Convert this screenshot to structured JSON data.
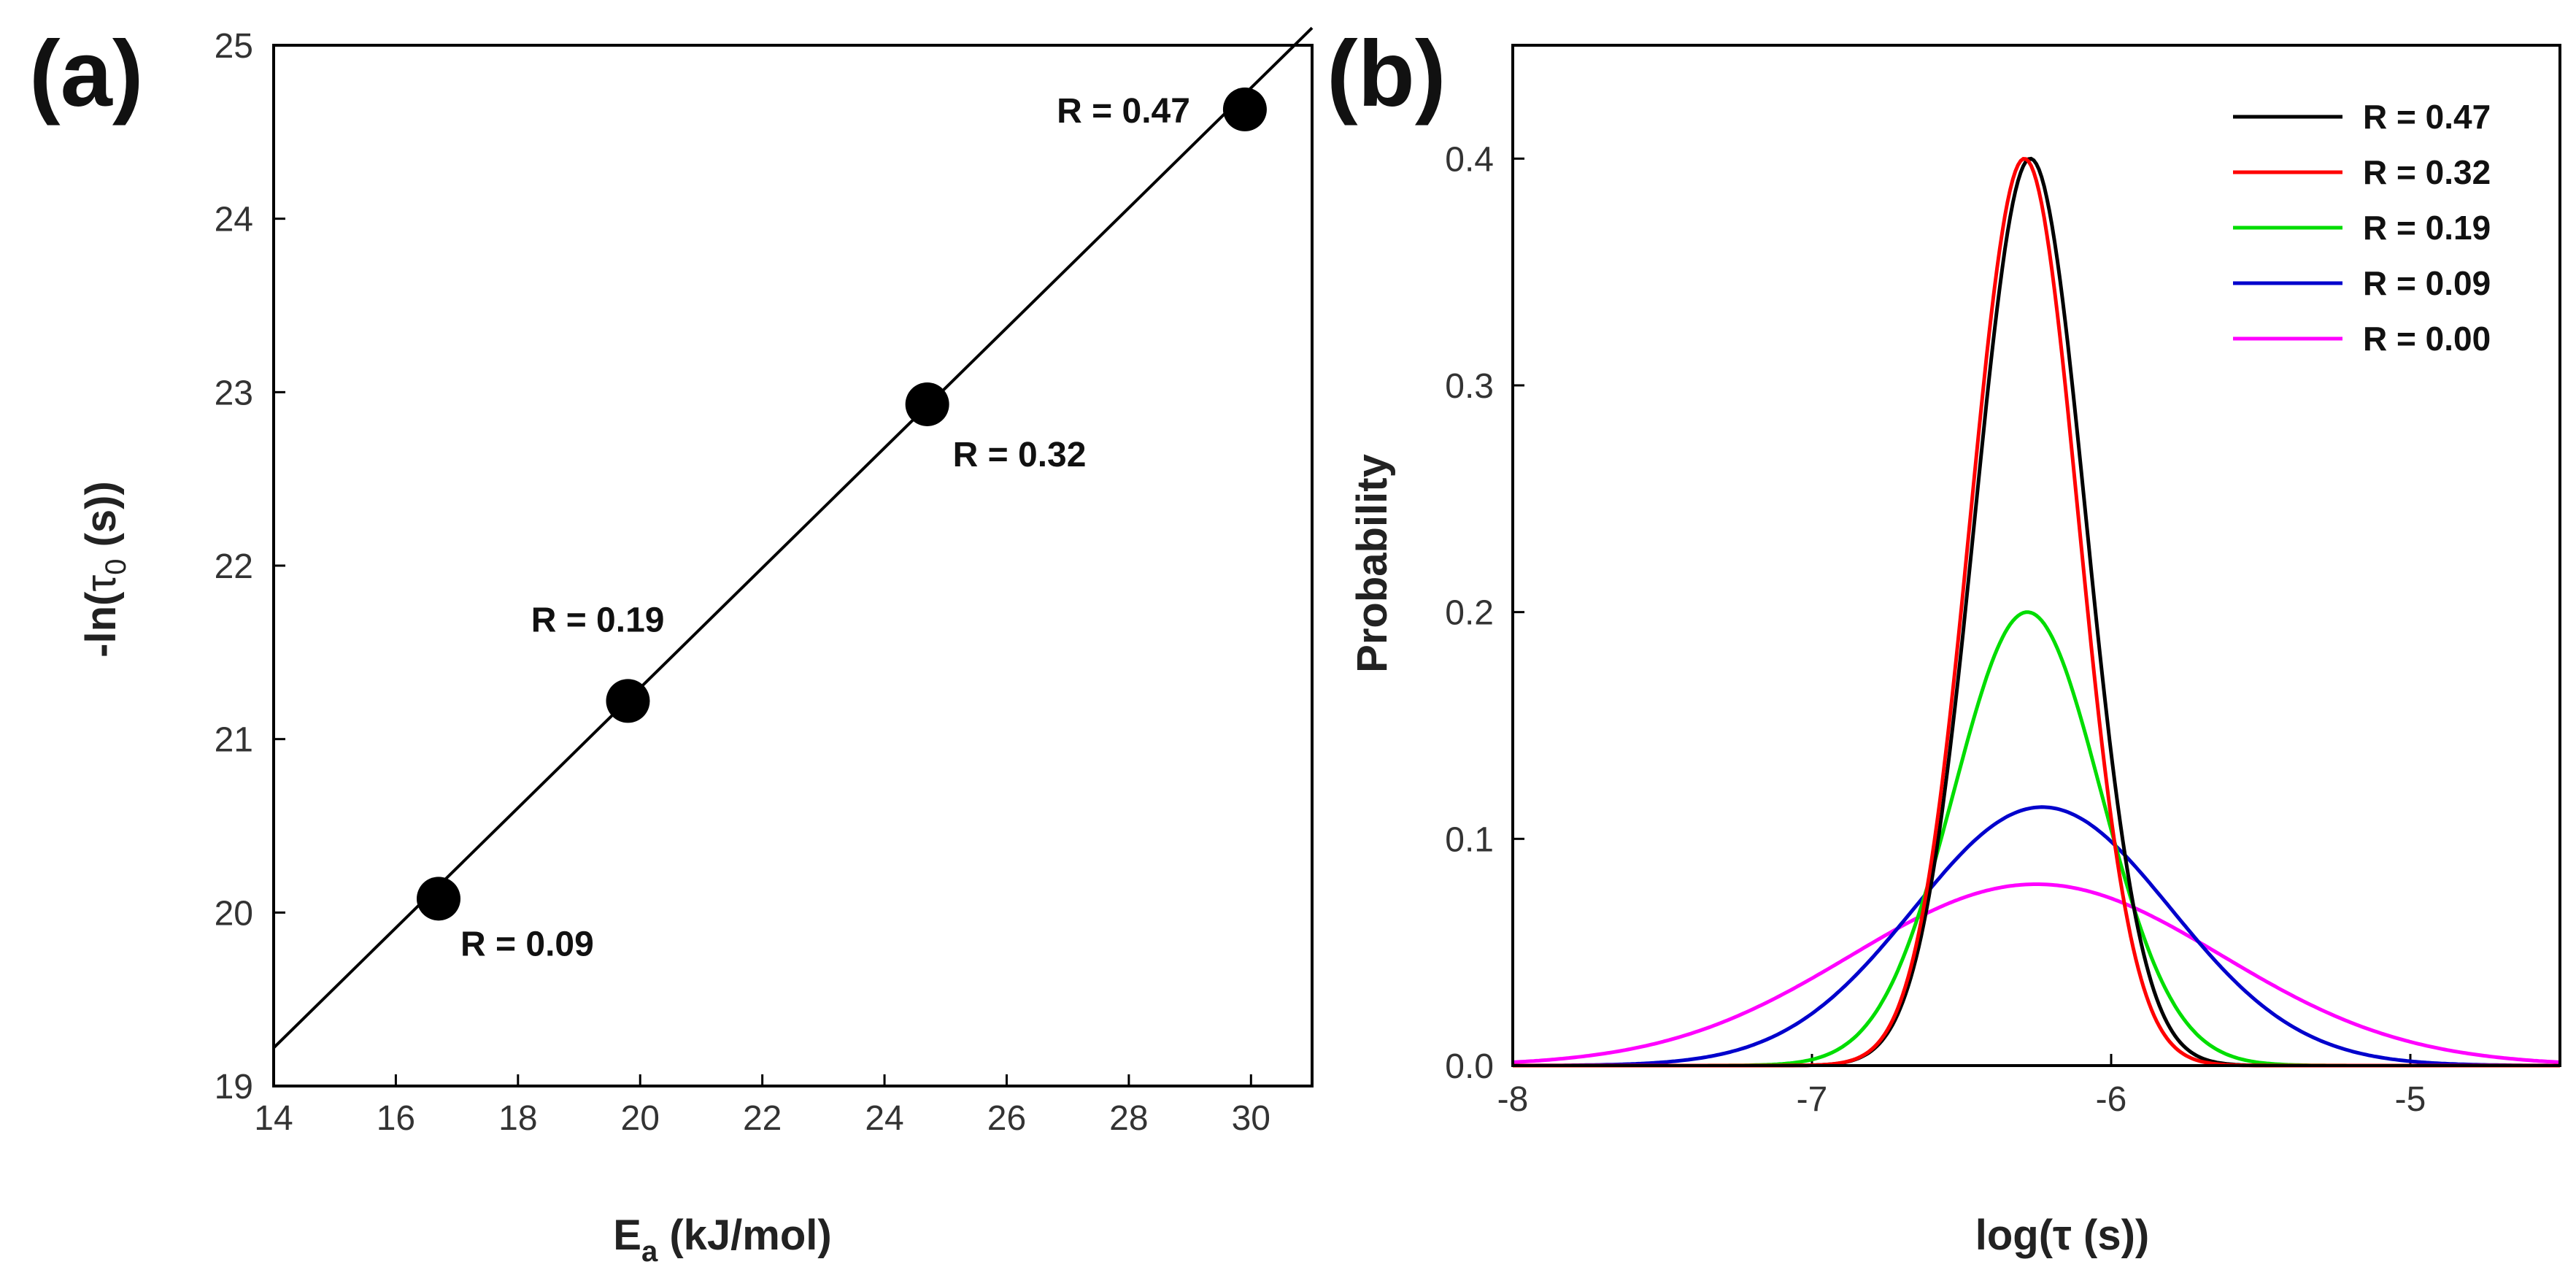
{
  "chart_data": [
    {
      "type": "scatter",
      "panel_label": "(a)",
      "xlabel_main": "E",
      "xlabel_sub": "a",
      "xlabel_rest": " (kJ/mol)",
      "ylabel_pre": "-ln(",
      "ylabel_tau": "τ",
      "ylabel_sub": "0",
      "ylabel_post": " (s))",
      "xlim": [
        14,
        31
      ],
      "ylim": [
        19,
        25
      ],
      "xticks": [
        "14",
        "16",
        "18",
        "20",
        "22",
        "24",
        "26",
        "28",
        "30"
      ],
      "yticks": [
        "19",
        "20",
        "21",
        "22",
        "23",
        "24",
        "25"
      ],
      "points": [
        {
          "x": 16.7,
          "y": 20.08,
          "label": "R = 0.09"
        },
        {
          "x": 19.8,
          "y": 21.22,
          "label": "R = 0.19"
        },
        {
          "x": 24.7,
          "y": 22.93,
          "label": "R = 0.32"
        },
        {
          "x": 29.9,
          "y": 24.63,
          "label": "R = 0.47"
        }
      ],
      "fit_line": {
        "x": [
          14,
          31
        ],
        "y": [
          19.22,
          25.1
        ]
      }
    },
    {
      "type": "line",
      "panel_label": "(b)",
      "xlabel": "log(τ (s))",
      "ylabel": "Probability",
      "xlim": [
        -8,
        -4.5
      ],
      "ylim": [
        0,
        0.45
      ],
      "xticks": [
        {
          "v": -8,
          "label": "-8"
        },
        {
          "v": -7,
          "label": "-7"
        },
        {
          "v": -6,
          "label": "-6"
        },
        {
          "v": -5,
          "label": "-5"
        }
      ],
      "yticks": [
        {
          "v": 0,
          "label": "0.0"
        },
        {
          "v": 0.1,
          "label": "0.1"
        },
        {
          "v": 0.2,
          "label": "0.2"
        },
        {
          "v": 0.3,
          "label": "0.3"
        },
        {
          "v": 0.4,
          "label": "0.4"
        }
      ],
      "legend_position": "top-right",
      "series": [
        {
          "name": "R = 0.47",
          "color": "#000000",
          "mu": -6.27,
          "peak": 0.4,
          "sigma": 0.185
        },
        {
          "name": "R = 0.32",
          "color": "#ff0000",
          "mu": -6.29,
          "peak": 0.4,
          "sigma": 0.18
        },
        {
          "name": "R = 0.19",
          "color": "#00dd00",
          "mu": -6.28,
          "peak": 0.2,
          "sigma": 0.245
        },
        {
          "name": "R = 0.09",
          "color": "#0000cc",
          "mu": -6.23,
          "peak": 0.114,
          "sigma": 0.43
        },
        {
          "name": "R = 0.00",
          "color": "#ff00ff",
          "mu": -6.25,
          "peak": 0.08,
          "sigma": 0.62
        }
      ]
    }
  ]
}
